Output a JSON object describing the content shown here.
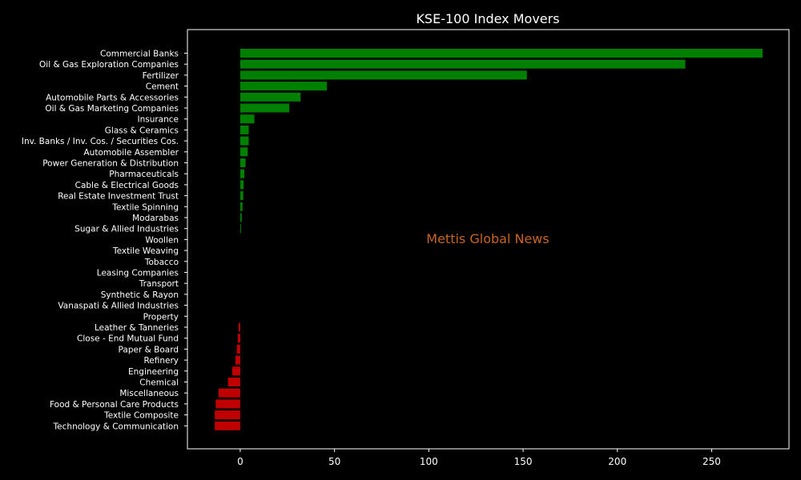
{
  "chart_data": {
    "type": "bar",
    "orientation": "horizontal",
    "title": "KSE-100 Index Movers",
    "watermark": "Mettis Global News",
    "xlabel": "",
    "ylabel": "",
    "xlim": [
      -28,
      291
    ],
    "xticks": [
      0,
      50,
      100,
      150,
      200,
      250
    ],
    "grid": false,
    "colors": {
      "background": "#000000",
      "positive": "#008000",
      "negative": "#c00000",
      "text": "#ffffff",
      "watermark": "#c8641e"
    },
    "categories": [
      "Commercial Banks",
      "Oil & Gas Exploration Companies",
      "Fertilizer",
      "Cement",
      "Automobile Parts & Accessories",
      "Oil & Gas Marketing Companies",
      "Insurance",
      "Glass & Ceramics",
      "Inv. Banks / Inv. Cos. / Securities Cos.",
      "Automobile Assembler",
      "Power Generation & Distribution",
      "Pharmaceuticals",
      "Cable & Electrical Goods",
      "Real Estate Investment Trust",
      "Textile Spinning",
      "Modarabas",
      "Sugar & Allied Industries",
      "Woollen",
      "Textile Weaving",
      "Tobacco",
      "Leasing Companies",
      "Transport",
      "Synthetic & Rayon",
      "Vanaspati & Allied Industries",
      "Property",
      "Leather & Tanneries",
      "Close - End Mutual Fund",
      "Paper & Board",
      "Refinery",
      "Engineering",
      "Chemical",
      "Miscellaneous",
      "Food & Personal Care Products",
      "Textile Composite",
      "Technology & Communication"
    ],
    "values": [
      277,
      236,
      152,
      46,
      32,
      26,
      7.5,
      4.5,
      4.5,
      4,
      2.8,
      2.2,
      1.8,
      1.6,
      1.2,
      0.8,
      0.3,
      0,
      0,
      0,
      0,
      0,
      0,
      0,
      0,
      -0.8,
      -1.3,
      -1.8,
      -2.5,
      -4.2,
      -6.5,
      -11.5,
      -13,
      -13.5,
      -13.5
    ]
  }
}
